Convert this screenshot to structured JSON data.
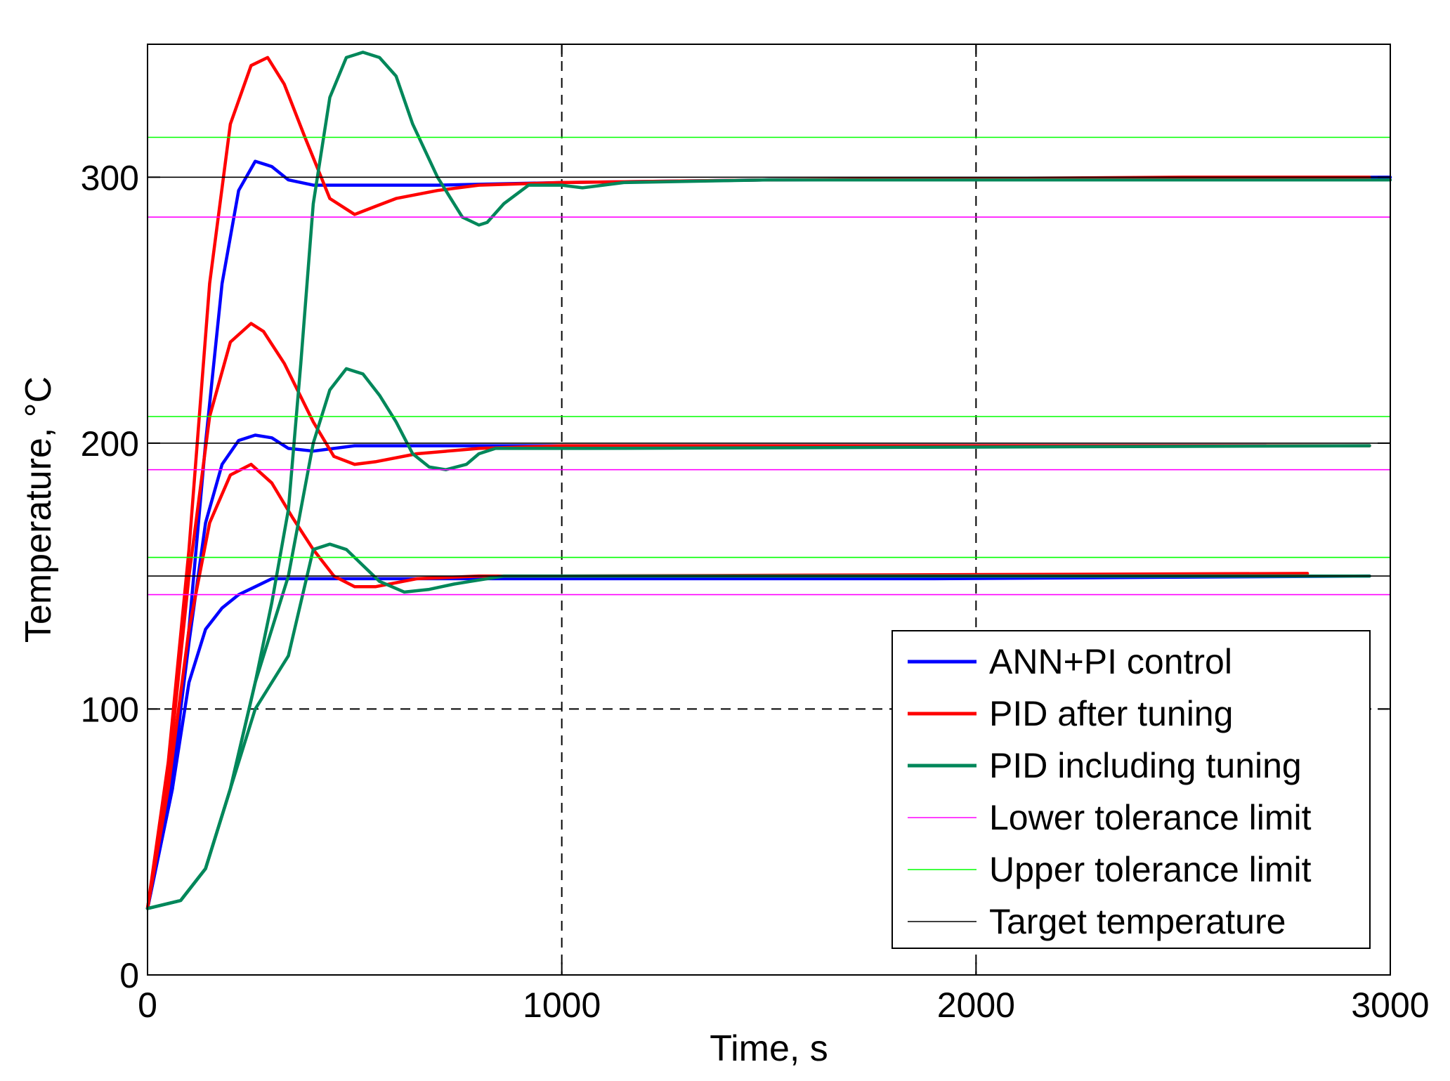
{
  "chart_data": {
    "type": "line",
    "title": "",
    "xlabel": "Time, s",
    "ylabel": "Temperature, °C",
    "xlim": [
      0,
      3000
    ],
    "ylim": [
      0,
      350
    ],
    "xticks": [
      0,
      1000,
      2000,
      3000
    ],
    "yticks": [
      0,
      100,
      200,
      300
    ],
    "grid": "dashed, at x=1000, x=2000 and y=100",
    "legend_position": "bottom-right",
    "series": [
      {
        "name": "ANN+PI control",
        "color": "#0000ff",
        "width": 2,
        "legend": true,
        "x": [
          0,
          60,
          100,
          140,
          180,
          220,
          260,
          300,
          340,
          400,
          500,
          700,
          1000,
          1500,
          3000
        ],
        "y": [
          25,
          70,
          130,
          200,
          260,
          295,
          306,
          304,
          299,
          297,
          297,
          297,
          298,
          299,
          300
        ]
      },
      {
        "name": "ANN+PI control",
        "color": "#0000ff",
        "width": 2,
        "legend": false,
        "x": [
          0,
          60,
          100,
          140,
          180,
          220,
          260,
          300,
          340,
          400,
          500,
          1000,
          1500,
          2700
        ],
        "y": [
          25,
          75,
          125,
          170,
          192,
          201,
          203,
          202,
          198,
          197,
          199,
          199,
          199,
          199
        ]
      },
      {
        "name": "ANN+PI control",
        "color": "#0000ff",
        "width": 2,
        "legend": false,
        "x": [
          0,
          60,
          100,
          140,
          180,
          220,
          260,
          300,
          340,
          400,
          500,
          1000,
          1900,
          2950
        ],
        "y": [
          25,
          70,
          110,
          130,
          138,
          143,
          146,
          149,
          149,
          149,
          149,
          149,
          149,
          150
        ]
      },
      {
        "name": "PID after tuning",
        "color": "#ff0000",
        "width": 2,
        "legend": true,
        "x": [
          0,
          50,
          100,
          150,
          200,
          250,
          290,
          330,
          380,
          440,
          500,
          550,
          600,
          700,
          800,
          1000,
          1500,
          2500,
          2950
        ],
        "y": [
          25,
          80,
          160,
          260,
          320,
          342,
          345,
          335,
          315,
          292,
          286,
          289,
          292,
          295,
          297,
          298,
          299,
          300,
          300
        ]
      },
      {
        "name": "PID after tuning",
        "color": "#ff0000",
        "width": 2,
        "legend": false,
        "x": [
          0,
          50,
          100,
          150,
          200,
          250,
          280,
          330,
          400,
          450,
          500,
          550,
          650,
          800,
          1000,
          2950
        ],
        "y": [
          25,
          75,
          150,
          210,
          238,
          245,
          242,
          230,
          208,
          195,
          192,
          193,
          196,
          198,
          199,
          199
        ]
      },
      {
        "name": "PID after tuning",
        "color": "#ff0000",
        "width": 2,
        "legend": false,
        "x": [
          0,
          50,
          100,
          150,
          200,
          250,
          300,
          350,
          400,
          450,
          500,
          550,
          650,
          800,
          1000,
          2800
        ],
        "y": [
          25,
          70,
          130,
          170,
          188,
          192,
          185,
          172,
          160,
          150,
          146,
          146,
          149,
          150,
          150,
          151
        ]
      },
      {
        "name": "PID including tuning",
        "color": "#00875a",
        "width": 2,
        "legend": true,
        "x": [
          0,
          80,
          140,
          200,
          260,
          300,
          340,
          370,
          400,
          440,
          480,
          520,
          560,
          600,
          640,
          700,
          760,
          800,
          820,
          860,
          920,
          1000,
          1050,
          1150,
          1500,
          3000
        ],
        "y": [
          25,
          28,
          40,
          70,
          110,
          140,
          175,
          230,
          290,
          330,
          345,
          347,
          345,
          338,
          320,
          300,
          285,
          282,
          283,
          290,
          297,
          297,
          296,
          298,
          299,
          299
        ]
      },
      {
        "name": "PID including tuning",
        "color": "#00875a",
        "width": 2,
        "legend": false,
        "x": [
          0,
          80,
          140,
          200,
          260,
          300,
          340,
          370,
          400,
          440,
          480,
          520,
          560,
          600,
          640,
          680,
          720,
          770,
          800,
          840,
          880,
          940,
          1000,
          1050,
          2950
        ],
        "y": [
          25,
          28,
          40,
          70,
          110,
          130,
          150,
          175,
          200,
          220,
          228,
          226,
          218,
          208,
          196,
          191,
          190,
          192,
          196,
          198,
          198,
          198,
          198,
          198,
          199
        ]
      },
      {
        "name": "PID including tuning",
        "color": "#00875a",
        "width": 2,
        "legend": false,
        "x": [
          0,
          80,
          140,
          200,
          260,
          300,
          340,
          370,
          400,
          440,
          480,
          520,
          560,
          620,
          680,
          740,
          780,
          820,
          860,
          1000,
          2950
        ],
        "y": [
          25,
          28,
          40,
          70,
          100,
          110,
          120,
          140,
          160,
          162,
          160,
          154,
          148,
          144,
          145,
          147,
          148,
          149,
          150,
          150,
          150
        ]
      },
      {
        "name": "Lower tolerance limit",
        "color": "#ff00ff",
        "width": 1,
        "legend": true,
        "x": [
          0,
          3000
        ],
        "y": [
          285,
          285
        ]
      },
      {
        "name": "Lower tolerance limit",
        "color": "#ff00ff",
        "width": 1,
        "legend": false,
        "x": [
          0,
          3000
        ],
        "y": [
          190,
          190
        ]
      },
      {
        "name": "Lower tolerance limit",
        "color": "#ff00ff",
        "width": 1,
        "legend": false,
        "x": [
          0,
          3000
        ],
        "y": [
          143,
          143
        ]
      },
      {
        "name": "Upper tolerance limit",
        "color": "#00ff00",
        "width": 1,
        "legend": true,
        "x": [
          0,
          3000
        ],
        "y": [
          315,
          315
        ]
      },
      {
        "name": "Upper tolerance limit",
        "color": "#00ff00",
        "width": 1,
        "legend": false,
        "x": [
          0,
          3000
        ],
        "y": [
          210,
          210
        ]
      },
      {
        "name": "Upper tolerance limit",
        "color": "#00ff00",
        "width": 1,
        "legend": false,
        "x": [
          0,
          3000
        ],
        "y": [
          157,
          157
        ]
      },
      {
        "name": "Target temperature",
        "color": "#000000",
        "width": 1,
        "legend": true,
        "x": [
          0,
          3000
        ],
        "y": [
          300,
          300
        ]
      },
      {
        "name": "Target temperature",
        "color": "#000000",
        "width": 1,
        "legend": false,
        "x": [
          0,
          3000
        ],
        "y": [
          200,
          200
        ]
      },
      {
        "name": "Target temperature",
        "color": "#000000",
        "width": 1,
        "legend": false,
        "x": [
          0,
          3000
        ],
        "y": [
          150,
          150
        ]
      }
    ]
  }
}
